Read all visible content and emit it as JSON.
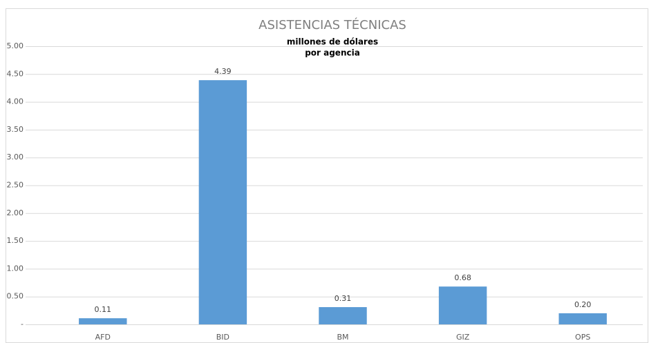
{
  "chart_data": {
    "type": "bar",
    "title": "ASISTENCIAS TÉCNICAS",
    "subtitle": [
      "millones de dólares",
      "por agencia"
    ],
    "categories": [
      "AFD",
      "BID",
      "BM",
      "GIZ",
      "OPS"
    ],
    "values": [
      0.11,
      4.39,
      0.31,
      0.68,
      0.2
    ],
    "value_labels": [
      "0.11",
      "4.39",
      "0.31",
      "0.68",
      "0.20"
    ],
    "color": "#5b9bd5",
    "ylim": [
      0,
      5
    ],
    "yticks": [
      {
        "value": 0,
        "label": "-"
      },
      {
        "value": 0.5,
        "label": "0.50"
      },
      {
        "value": 1,
        "label": "1.00"
      },
      {
        "value": 1.5,
        "label": "1.50"
      },
      {
        "value": 2,
        "label": "2.00"
      },
      {
        "value": 2.5,
        "label": "2.50"
      },
      {
        "value": 3,
        "label": "3.00"
      },
      {
        "value": 3.5,
        "label": "3.50"
      },
      {
        "value": 4,
        "label": "4.00"
      },
      {
        "value": 4.5,
        "label": "4.50"
      },
      {
        "value": 5,
        "label": "5.00"
      }
    ],
    "grid": true
  }
}
